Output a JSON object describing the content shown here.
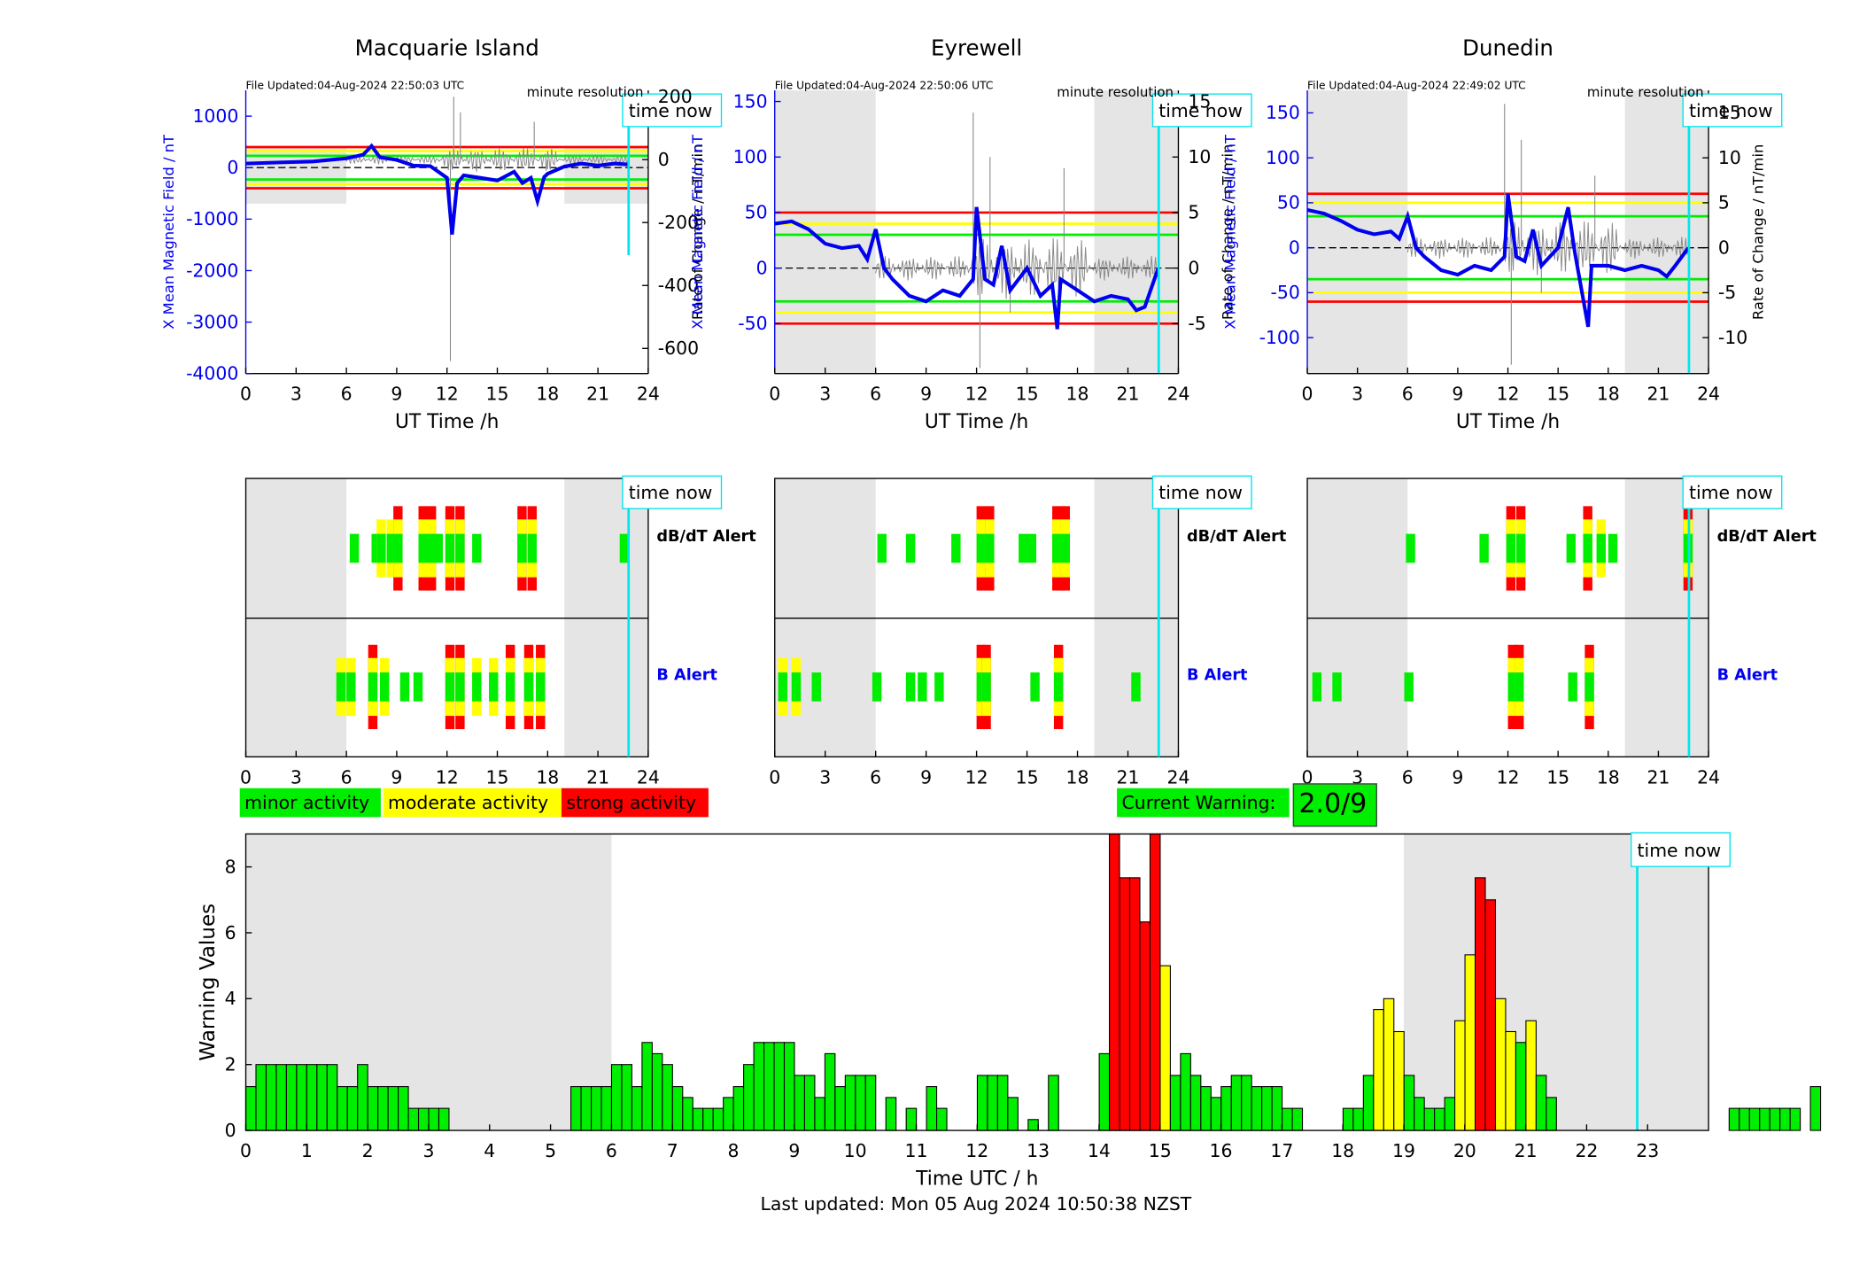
{
  "title_line": "Last updated: Mon 05 Aug 2024 10:50:38 NZST",
  "time_now_label": "time now",
  "time_now_hour": 22.83,
  "stations": [
    {
      "name": "Macquarie Island",
      "file_updated": "File Updated:04-Aug-2024 22:50:03 UTC",
      "resolution": "minute resolution",
      "ylabel_left": "X Mean Magnetic Field / nT",
      "ylabel_right": "Rate of Change / nT/min",
      "xlabel": "UT Time /h",
      "left_ylim": [
        -4000,
        1500
      ],
      "left_ticks": [
        "1000",
        "0",
        "-1000",
        "-2000",
        "-3000",
        "-4000"
      ],
      "right_ylim": [
        -680,
        220
      ],
      "right_ticks": [
        "200",
        "0",
        "-200",
        "-400",
        "-600"
      ],
      "thresholds": {
        "red": 400,
        "yellow": 320,
        "green": 230
      },
      "night": [
        [
          0,
          6
        ],
        [
          19,
          24
        ]
      ],
      "field_trace": [
        [
          0,
          80
        ],
        [
          2,
          100
        ],
        [
          4,
          120
        ],
        [
          6,
          180
        ],
        [
          7,
          250
        ],
        [
          7.5,
          420
        ],
        [
          8,
          200
        ],
        [
          9,
          150
        ],
        [
          10,
          40
        ],
        [
          11,
          30
        ],
        [
          12,
          -200
        ],
        [
          12.3,
          -1300
        ],
        [
          12.6,
          -300
        ],
        [
          13,
          -150
        ],
        [
          14,
          -200
        ],
        [
          15,
          -250
        ],
        [
          16,
          -80
        ],
        [
          16.5,
          -300
        ],
        [
          17,
          -200
        ],
        [
          17.4,
          -650
        ],
        [
          17.8,
          -180
        ],
        [
          18,
          -120
        ],
        [
          19,
          20
        ],
        [
          20,
          80
        ],
        [
          21,
          40
        ],
        [
          22,
          80
        ],
        [
          22.8,
          60
        ]
      ],
      "rate_spikes": [
        [
          12.2,
          -640
        ],
        [
          12.4,
          200
        ],
        [
          12.8,
          150
        ],
        [
          17.2,
          120
        ],
        [
          18,
          -30
        ],
        [
          22.5,
          0
        ]
      ]
    },
    {
      "name": "Eyrewell",
      "file_updated": "File Updated:04-Aug-2024 22:50:06 UTC",
      "resolution": "minute resolution",
      "ylabel_left": "X Mean Magnetic Field / nT",
      "ylabel_right": "Rate of Change / nT/min",
      "xlabel": "UT Time /h",
      "left_ylim": [
        -95,
        160
      ],
      "left_ticks": [
        "150",
        "100",
        "50",
        "0",
        "-50"
      ],
      "right_ylim": [
        -9.5,
        16
      ],
      "right_ticks": [
        "15",
        "10",
        "5",
        "0",
        "-5"
      ],
      "thresholds": {
        "red": 50,
        "yellow": 40,
        "green": 30
      },
      "night": [
        [
          0,
          6
        ],
        [
          19,
          24
        ]
      ],
      "field_trace": [
        [
          0,
          40
        ],
        [
          1,
          42
        ],
        [
          2,
          35
        ],
        [
          3,
          22
        ],
        [
          4,
          18
        ],
        [
          5,
          20
        ],
        [
          5.5,
          8
        ],
        [
          6,
          35
        ],
        [
          6.5,
          0
        ],
        [
          7,
          -10
        ],
        [
          8,
          -25
        ],
        [
          9,
          -30
        ],
        [
          10,
          -20
        ],
        [
          11,
          -25
        ],
        [
          11.8,
          -10
        ],
        [
          12,
          55
        ],
        [
          12.5,
          -10
        ],
        [
          13,
          -15
        ],
        [
          13.5,
          20
        ],
        [
          14,
          -20
        ],
        [
          15,
          0
        ],
        [
          15.8,
          -25
        ],
        [
          16.5,
          -15
        ],
        [
          16.8,
          -55
        ],
        [
          17,
          -10
        ],
        [
          18,
          -20
        ],
        [
          19,
          -30
        ],
        [
          20,
          -25
        ],
        [
          21,
          -28
        ],
        [
          21.5,
          -38
        ],
        [
          22,
          -35
        ],
        [
          22.8,
          0
        ]
      ],
      "rate_spikes": [
        [
          12.2,
          -9
        ],
        [
          11.8,
          14
        ],
        [
          12.8,
          10
        ],
        [
          17.2,
          9
        ],
        [
          14,
          -4
        ]
      ]
    },
    {
      "name": "Dunedin",
      "file_updated": "File Updated:04-Aug-2024 22:49:02 UTC",
      "resolution": "minute resolution",
      "ylabel_left": "X Mean Magnetic Field / nT",
      "ylabel_right": "Rate of Change / nT/min",
      "xlabel": "UT Time /h",
      "left_ylim": [
        -140,
        175
      ],
      "left_ticks": [
        "150",
        "100",
        "50",
        "0",
        "-50",
        "-100"
      ],
      "right_ylim": [
        -14,
        17.5
      ],
      "right_ticks": [
        "15",
        "10",
        "5",
        "0",
        "-5",
        "-10"
      ],
      "thresholds": {
        "red": 60,
        "yellow": 50,
        "green": 35
      },
      "night": [
        [
          0,
          6
        ],
        [
          19,
          24
        ]
      ],
      "field_trace": [
        [
          0,
          42
        ],
        [
          1,
          38
        ],
        [
          2,
          30
        ],
        [
          3,
          20
        ],
        [
          4,
          15
        ],
        [
          5,
          18
        ],
        [
          5.5,
          10
        ],
        [
          6,
          35
        ],
        [
          6.5,
          0
        ],
        [
          7,
          -10
        ],
        [
          8,
          -25
        ],
        [
          9,
          -30
        ],
        [
          10,
          -20
        ],
        [
          11,
          -25
        ],
        [
          11.8,
          -10
        ],
        [
          12,
          60
        ],
        [
          12.5,
          -10
        ],
        [
          13,
          -15
        ],
        [
          13.5,
          20
        ],
        [
          14,
          -20
        ],
        [
          15,
          0
        ],
        [
          15.6,
          45
        ],
        [
          16,
          -5
        ],
        [
          16.8,
          -88
        ],
        [
          17,
          -20
        ],
        [
          18,
          -20
        ],
        [
          19,
          -25
        ],
        [
          20,
          -20
        ],
        [
          21,
          -25
        ],
        [
          21.5,
          -32
        ],
        [
          22,
          -20
        ],
        [
          22.8,
          0
        ]
      ],
      "rate_spikes": [
        [
          12.2,
          -13
        ],
        [
          11.8,
          16
        ],
        [
          12.8,
          12
        ],
        [
          17.2,
          8
        ],
        [
          14,
          -5
        ]
      ]
    }
  ],
  "alerts": {
    "row_labels": [
      "dB/dT Alert",
      "B Alert"
    ],
    "xlabel_ticks": [
      "0",
      "3",
      "6",
      "9",
      "12",
      "15",
      "18",
      "21",
      "24"
    ]
  },
  "legend": {
    "minor": "minor activity",
    "moderate": "moderate activity",
    "strong": "strong activity",
    "current_warning_label": "Current Warning:",
    "current_warning_value": "2.0/9",
    "colors": {
      "minor": "#00ee00",
      "moderate": "#ffff00",
      "strong": "#ff0000"
    }
  },
  "chart_data": {
    "type": "bar",
    "title": "",
    "xlabel": "Time UTC / h",
    "ylabel": "Warning Values",
    "xlim": [
      0,
      24
    ],
    "ylim": [
      0,
      9
    ],
    "x_ticks": [
      0,
      1,
      2,
      3,
      4,
      5,
      6,
      7,
      8,
      9,
      10,
      11,
      12,
      13,
      14,
      15,
      16,
      17,
      18,
      19,
      20,
      21,
      22,
      23
    ],
    "y_ticks": [
      0,
      2,
      4,
      6,
      8
    ],
    "bin_width_h": 0.1667,
    "night": [
      [
        0,
        6
      ],
      [
        19,
        24
      ]
    ],
    "values": [
      1.33,
      2,
      2,
      2,
      2,
      2,
      2,
      2,
      2,
      1.33,
      1.33,
      2,
      1.33,
      1.33,
      1.33,
      1.33,
      0.67,
      0.67,
      0.67,
      0.67,
      0,
      0,
      0,
      0,
      0,
      0,
      0,
      0,
      0,
      0,
      0,
      0,
      1.33,
      1.33,
      1.33,
      1.33,
      2,
      2,
      1.33,
      2.67,
      2.33,
      2,
      1.33,
      1,
      0.67,
      0.67,
      0.67,
      1,
      1.33,
      2,
      2.67,
      2.67,
      2.67,
      2.67,
      1.67,
      1.67,
      1,
      2.33,
      1.33,
      1.67,
      1.67,
      1.67,
      0,
      1,
      0,
      0.67,
      0,
      1.33,
      0.67,
      0,
      0,
      0,
      1.67,
      1.67,
      1.67,
      1,
      0,
      0.33,
      0,
      1.67,
      0,
      0,
      0,
      0,
      2.33,
      9,
      7.67,
      7.67,
      6.33,
      9,
      5,
      1.67,
      2.33,
      1.67,
      1.33,
      1,
      1.33,
      1.67,
      1.67,
      1.33,
      1.33,
      1.33,
      0.67,
      0.67,
      0,
      0,
      0,
      0,
      0.67,
      0.67,
      1.67,
      3.67,
      4,
      3,
      1.67,
      1,
      0.67,
      0.67,
      1,
      3.33,
      5.33,
      7.67,
      7,
      4,
      3,
      2.67,
      3.33,
      1.67,
      1,
      0,
      0,
      0,
      0,
      0,
      0,
      0,
      0,
      0,
      0,
      0,
      0,
      0,
      0,
      0,
      0,
      0,
      0.67,
      0.67,
      0.67,
      0.67,
      0.67,
      0.67,
      0.67,
      0,
      1.33,
      0,
      0,
      0
    ],
    "colors": [
      "g",
      "g",
      "g",
      "g",
      "g",
      "g",
      "g",
      "g",
      "g",
      "g",
      "g",
      "g",
      "g",
      "g",
      "g",
      "g",
      "g",
      "g",
      "g",
      "g",
      "g",
      "g",
      "g",
      "g",
      "g",
      "g",
      "g",
      "g",
      "g",
      "g",
      "g",
      "g",
      "g",
      "g",
      "g",
      "g",
      "g",
      "g",
      "g",
      "g",
      "g",
      "g",
      "g",
      "g",
      "g",
      "g",
      "g",
      "g",
      "g",
      "g",
      "g",
      "g",
      "g",
      "g",
      "g",
      "g",
      "g",
      "g",
      "g",
      "g",
      "g",
      "g",
      "g",
      "g",
      "g",
      "g",
      "g",
      "g",
      "g",
      "g",
      "g",
      "g",
      "g",
      "g",
      "g",
      "g",
      "g",
      "g",
      "g",
      "g",
      "g",
      "g",
      "g",
      "g",
      "g",
      "r",
      "r",
      "r",
      "r",
      "r",
      "y",
      "g",
      "g",
      "g",
      "g",
      "g",
      "g",
      "g",
      "g",
      "g",
      "g",
      "g",
      "g",
      "g",
      "g",
      "g",
      "g",
      "g",
      "g",
      "g",
      "g",
      "y",
      "y",
      "y",
      "g",
      "g",
      "g",
      "g",
      "g",
      "y",
      "y",
      "r",
      "r",
      "y",
      "y",
      "g",
      "y",
      "g",
      "g",
      "g",
      "g",
      "g",
      "g",
      "g",
      "g",
      "g",
      "g",
      "g",
      "g",
      "g",
      "g",
      "g",
      "g",
      "g",
      "g",
      "g",
      "g",
      "g",
      "g",
      "g",
      "g",
      "g",
      "g",
      "g",
      "g",
      "g",
      "g",
      "g",
      "g",
      "g",
      "g",
      "g",
      "g",
      "g"
    ]
  }
}
